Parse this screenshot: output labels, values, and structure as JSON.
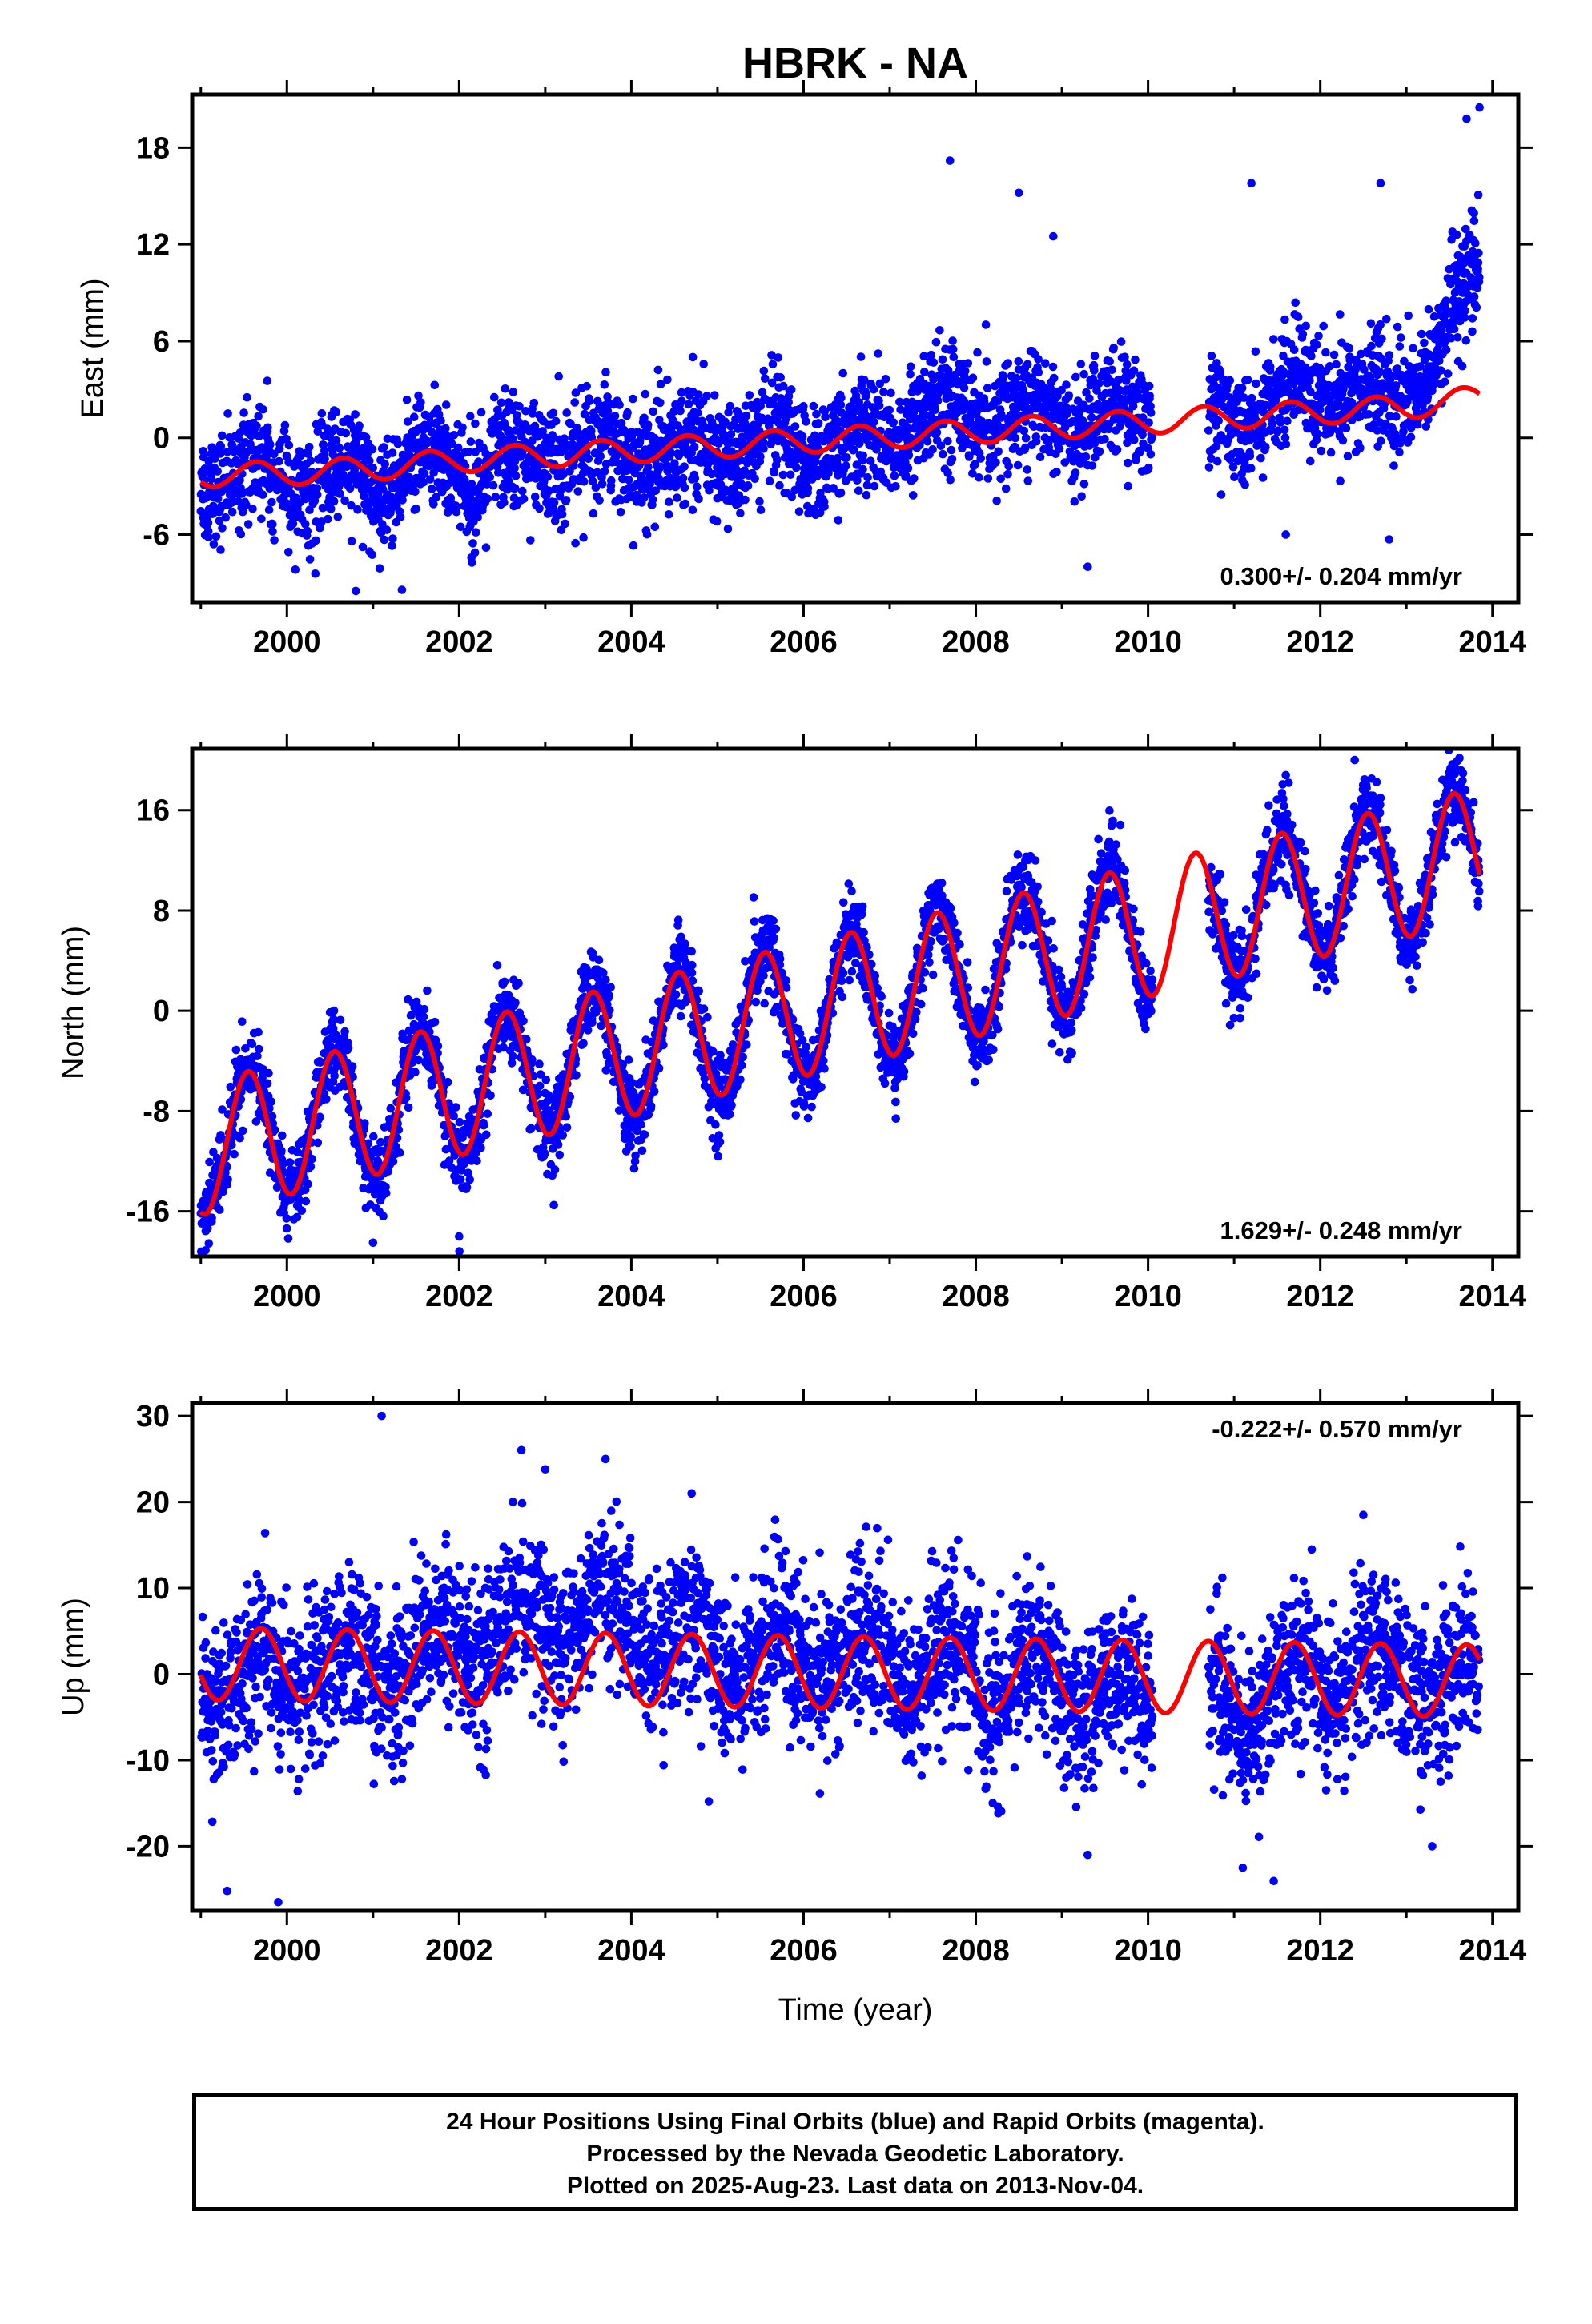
{
  "title": "HBRK - NA",
  "colors": {
    "final_orbits": "#0000ff",
    "model": "#ff0000",
    "frame": "#000000"
  },
  "chart_data": [
    {
      "type": "scatter",
      "ylabel": "East (mm)",
      "xlim": [
        1998.9,
        2014.3
      ],
      "ylim": [
        -10.2,
        21.3
      ],
      "xticks": [
        2000,
        2002,
        2004,
        2006,
        2008,
        2010,
        2012,
        2014
      ],
      "yticks": [
        -6,
        0,
        6,
        12,
        18
      ],
      "rate_label": "0.300+/- 0.204 mm/yr",
      "rate_position": "bottom-right",
      "series": [
        {
          "kind": "points",
          "x_range": [
            1999.0,
            2013.85
          ],
          "gaps": [
            [
              2010.05,
              2010.7
            ]
          ],
          "trend": [
            [
              1999.0,
              -2.2
            ],
            [
              2001.0,
              -2.4
            ],
            [
              2003.0,
              -1.2
            ],
            [
              2005.0,
              -0.8
            ],
            [
              2006.5,
              -0.6
            ],
            [
              2007.5,
              1.6
            ],
            [
              2008.7,
              1.4
            ],
            [
              2010.0,
              1.5
            ],
            [
              2011.0,
              1.3
            ],
            [
              2012.0,
              3.3
            ],
            [
              2012.9,
              1.8
            ],
            [
              2013.85,
              10.0
            ]
          ],
          "seasonal_amp": 1.0,
          "scatter": 1.7,
          "outliers": [
            [
              2007.7,
              17.2
            ],
            [
              2008.5,
              15.2
            ],
            [
              2008.9,
              12.5
            ],
            [
              2009.3,
              -8.0
            ],
            [
              2011.2,
              15.8
            ],
            [
              2012.7,
              15.8
            ],
            [
              2013.7,
              19.8
            ],
            [
              2013.85,
              20.5
            ],
            [
              2000.8,
              -9.5
            ],
            [
              2011.6,
              -6.0
            ],
            [
              2012.8,
              -6.3
            ]
          ]
        },
        {
          "kind": "model",
          "breakpoints": [
            [
              1999.0,
              -2.3
            ],
            [
              2000.0,
              -2.2
            ],
            [
              2001.0,
              -1.9
            ],
            [
              2002.0,
              -1.4
            ],
            [
              2003.0,
              -1.1
            ],
            [
              2004.0,
              -0.8
            ],
            [
              2005.0,
              -0.5
            ],
            [
              2006.0,
              -0.2
            ],
            [
              2007.0,
              0.1
            ],
            [
              2008.0,
              0.4
            ],
            [
              2009.0,
              0.7
            ],
            [
              2010.0,
              1.0
            ],
            [
              2011.0,
              1.3
            ],
            [
              2012.0,
              1.6
            ],
            [
              2013.0,
              1.9
            ],
            [
              2013.85,
              2.5
            ]
          ],
          "annual_amp": 0.75,
          "phase_peak": 0.65
        }
      ]
    },
    {
      "type": "scatter",
      "ylabel": "North (mm)",
      "xlim": [
        1998.9,
        2014.3
      ],
      "ylim": [
        -19.6,
        20.9
      ],
      "xticks": [
        2000,
        2002,
        2004,
        2006,
        2008,
        2010,
        2012,
        2014
      ],
      "yticks": [
        -16,
        -8,
        0,
        8,
        16
      ],
      "rate_label": "1.629+/- 0.248 mm/yr",
      "rate_position": "bottom-right",
      "series": [
        {
          "kind": "points",
          "x_range": [
            1999.0,
            2013.85
          ],
          "gaps": [
            [
              2010.05,
              2010.7
            ]
          ],
          "trend": [
            [
              1999.0,
              -11.0
            ],
            [
              2013.85,
              12.5
            ]
          ],
          "seasonal_amp": 5.5,
          "scatter": 1.6,
          "outliers": [
            [
              2001.0,
              -18.5
            ],
            [
              2002.0,
              -18.0
            ],
            [
              2003.1,
              -15.5
            ],
            [
              2011.6,
              18.8
            ],
            [
              2012.4,
              20.0
            ],
            [
              2013.5,
              19.0
            ]
          ]
        },
        {
          "kind": "model",
          "breakpoints": [
            [
              1999.0,
              -11.0
            ],
            [
              2013.85,
              12.5
            ]
          ],
          "annual_amp": 5.3,
          "phase_peak": 0.55
        }
      ]
    },
    {
      "type": "scatter",
      "ylabel": "Up (mm)",
      "xlabel": "Time (year)",
      "xlim": [
        1998.9,
        2014.3
      ],
      "ylim": [
        -27.5,
        31.5
      ],
      "xticks": [
        2000,
        2002,
        2004,
        2006,
        2008,
        2010,
        2012,
        2014
      ],
      "yticks": [
        -20,
        -10,
        0,
        10,
        20,
        30
      ],
      "rate_label": "-0.222+/- 0.570 mm/yr",
      "rate_position": "top-right",
      "series": [
        {
          "kind": "points",
          "x_range": [
            1999.0,
            2013.85
          ],
          "gaps": [
            [
              2010.05,
              2010.7
            ]
          ],
          "trend": [
            [
              1999.0,
              -1.0
            ],
            [
              2001.0,
              0.5
            ],
            [
              2002.5,
              5.0
            ],
            [
              2003.7,
              7.5
            ],
            [
              2005.0,
              2.5
            ],
            [
              2007.0,
              1.5
            ],
            [
              2009.0,
              -2.0
            ],
            [
              2010.0,
              -2.5
            ],
            [
              2011.0,
              -4.0
            ],
            [
              2012.0,
              0.0
            ],
            [
              2013.85,
              -1.0
            ]
          ],
          "seasonal_amp": 3.0,
          "scatter": 4.6,
          "outliers": [
            [
              2001.1,
              30.0
            ],
            [
              1999.9,
              -26.5
            ],
            [
              2003.7,
              25.0
            ],
            [
              2003.0,
              23.8
            ],
            [
              2004.7,
              21.0
            ],
            [
              2009.3,
              -21.0
            ],
            [
              2011.1,
              -22.5
            ],
            [
              2013.3,
              -20.0
            ],
            [
              2004.9,
              -14.8
            ],
            [
              2012.5,
              18.5
            ]
          ]
        },
        {
          "kind": "model",
          "breakpoints": [
            [
              1999.0,
              1.2
            ],
            [
              2013.85,
              -0.8
            ]
          ],
          "annual_amp": 4.2,
          "phase_peak": 0.7
        }
      ]
    }
  ],
  "caption": {
    "line1": "24 Hour Positions Using Final Orbits (blue) and Rapid Orbits (magenta).",
    "line2": "Processed by the Nevada Geodetic Laboratory.",
    "line3": "Plotted on 2025-Aug-23. Last data on 2013-Nov-04."
  }
}
